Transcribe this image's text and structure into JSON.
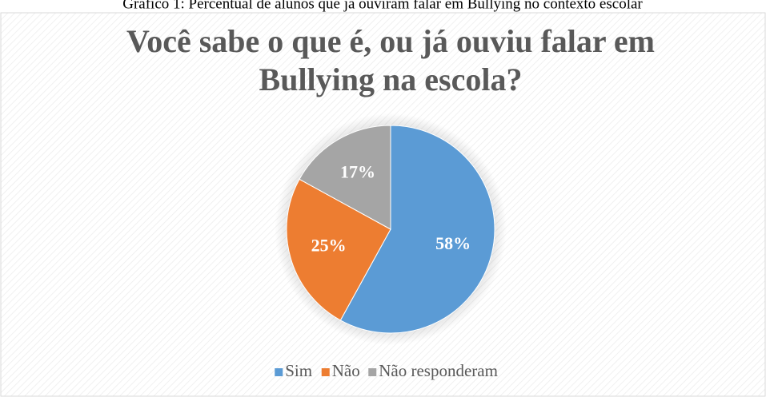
{
  "caption": "Gráfico 1: Percentual de alunos que já ouviram falar em Bullying no contexto escolar",
  "chart_data": {
    "type": "pie",
    "title": [
      "Você sabe o que é, ou já ouviu falar em",
      "Bullying na escola?"
    ],
    "categories": [
      "Sim",
      "Não",
      "Não responderam"
    ],
    "values": [
      58,
      25,
      17
    ],
    "value_labels": [
      "58%",
      "25%",
      "17%"
    ],
    "colors": [
      "#5b9bd5",
      "#ed7d31",
      "#a5a5a5"
    ],
    "legend": "bottom"
  }
}
